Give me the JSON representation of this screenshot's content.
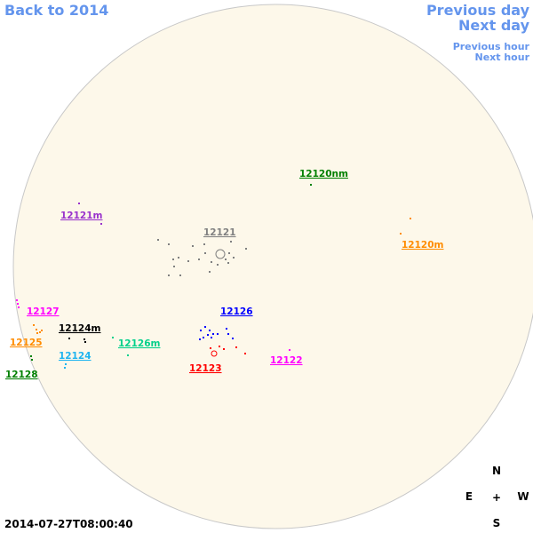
{
  "header": {
    "back": "Back to 2014",
    "previous_day": "Previous day",
    "next_day": "Next day",
    "previous_hour": "Previous hour",
    "next_hour": "Next hour"
  },
  "regions": [
    {
      "name": "12120nm",
      "color": "#008000"
    },
    {
      "name": "12121m",
      "color": "#9932cc"
    },
    {
      "name": "12121",
      "color": "#808080"
    },
    {
      "name": "12120m",
      "color": "#ff8c00"
    },
    {
      "name": "12127",
      "color": "#ff00ff"
    },
    {
      "name": "12126",
      "color": "#0000ff"
    },
    {
      "name": "12124m",
      "color": "#000000"
    },
    {
      "name": "12125",
      "color": "#ff8c00"
    },
    {
      "name": "12126m",
      "color": "#00d08a"
    },
    {
      "name": "12124",
      "color": "#1eb4f0"
    },
    {
      "name": "12122",
      "color": "#ff00ff"
    },
    {
      "name": "12123",
      "color": "#ff0000"
    },
    {
      "name": "12128",
      "color": "#008000"
    }
  ],
  "timestamp": "2014-07-27T08:00:40",
  "compass": {
    "north": "N",
    "east": "E",
    "center": "+",
    "west": "W",
    "south": "S"
  }
}
